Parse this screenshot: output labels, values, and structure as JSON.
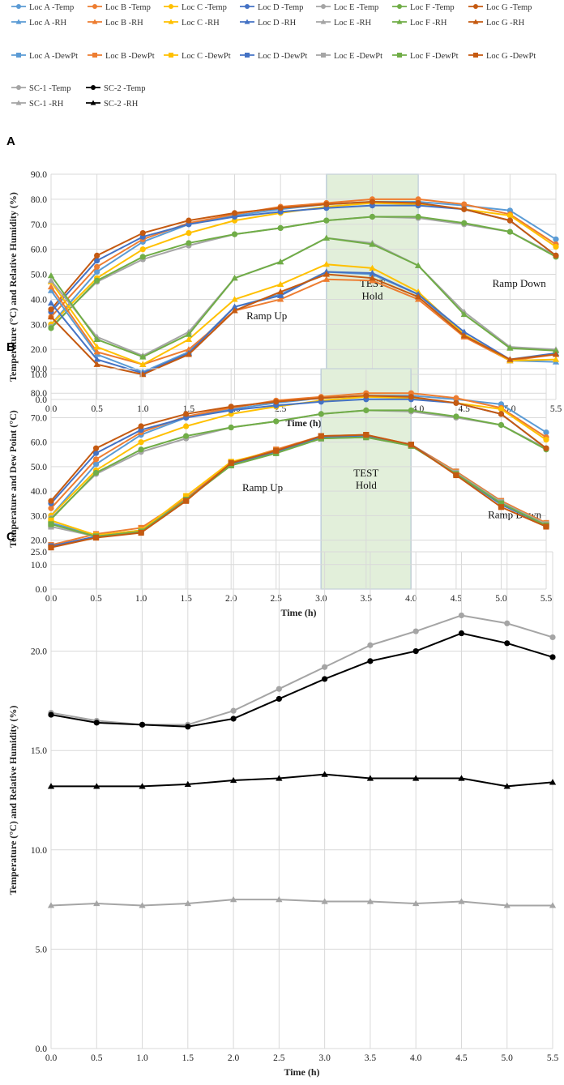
{
  "colors": {
    "locA": "#5B9BD5",
    "locB": "#ED7D31",
    "locC": "#FFC000",
    "locD": "#4472C4",
    "locE": "#A5A5A5",
    "locF": "#70AD47",
    "locG": "#C55A11",
    "sc1": "#A5A5A5",
    "sc2": "#000000",
    "grid": "#D9D9D9",
    "testFill": "#E2EFDA",
    "testStroke": "#5B9BD5"
  },
  "legend": {
    "rows": [
      [
        {
          "label": "Loc A -Temp",
          "color": "#5B9BD5",
          "marker": "circle"
        },
        {
          "label": "Loc B -Temp",
          "color": "#ED7D31",
          "marker": "circle"
        },
        {
          "label": "Loc C -Temp",
          "color": "#FFC000",
          "marker": "circle"
        },
        {
          "label": "Loc D -Temp",
          "color": "#4472C4",
          "marker": "circle"
        },
        {
          "label": "Loc E -Temp",
          "color": "#A5A5A5",
          "marker": "circle"
        },
        {
          "label": "Loc F -Temp",
          "color": "#70AD47",
          "marker": "circle"
        },
        {
          "label": "Loc G -Temp",
          "color": "#C55A11",
          "marker": "circle"
        }
      ],
      [
        {
          "label": "Loc A -RH",
          "color": "#5B9BD5",
          "marker": "triangle"
        },
        {
          "label": "Loc B -RH",
          "color": "#ED7D31",
          "marker": "triangle"
        },
        {
          "label": "Loc C -RH",
          "color": "#FFC000",
          "marker": "triangle"
        },
        {
          "label": "Loc D -RH",
          "color": "#4472C4",
          "marker": "triangle"
        },
        {
          "label": "Loc E -RH",
          "color": "#A5A5A5",
          "marker": "triangle"
        },
        {
          "label": "Loc F -RH",
          "color": "#70AD47",
          "marker": "triangle"
        },
        {
          "label": "Loc G -RH",
          "color": "#C55A11",
          "marker": "triangle"
        }
      ],
      [
        {
          "label": "Loc A -DewPt",
          "color": "#5B9BD5",
          "marker": "square"
        },
        {
          "label": "Loc B -DewPt",
          "color": "#ED7D31",
          "marker": "square"
        },
        {
          "label": "Loc C -DewPt",
          "color": "#FFC000",
          "marker": "square"
        },
        {
          "label": "Loc D -DewPt",
          "color": "#4472C4",
          "marker": "square"
        },
        {
          "label": "Loc E -DewPt",
          "color": "#A5A5A5",
          "marker": "square"
        },
        {
          "label": "Loc F -DewPt",
          "color": "#70AD47",
          "marker": "square"
        },
        {
          "label": "Loc G -DewPt",
          "color": "#C55A11",
          "marker": "square"
        }
      ],
      [
        {
          "label": "SC-1 -Temp",
          "color": "#A5A5A5",
          "marker": "circle"
        },
        {
          "label": "SC-2 -Temp",
          "color": "#000000",
          "marker": "circle"
        }
      ],
      [
        {
          "label": "SC-1 -RH",
          "color": "#A5A5A5",
          "marker": "triangle"
        },
        {
          "label": "SC-2 -RH",
          "color": "#000000",
          "marker": "triangle"
        }
      ]
    ]
  },
  "chart_data": [
    {
      "panel": "A",
      "type": "line",
      "title": "",
      "xlabel": "Time (h)",
      "ylabel": "Temperature (°C) and Relative Humidity (%)",
      "x": [
        0.0,
        0.5,
        1.0,
        1.5,
        2.0,
        2.5,
        3.0,
        3.5,
        4.0,
        4.5,
        5.0,
        5.5
      ],
      "xticks": [
        "0.0",
        "0.5",
        "1.0",
        "1.5",
        "2.0",
        "2.5",
        "3.0",
        "3.5",
        "4.0",
        "4.5",
        "5.0",
        "5.5"
      ],
      "xlim": [
        0,
        5.5
      ],
      "ylim": [
        0,
        90
      ],
      "yticks": [
        "0.0",
        "10.0",
        "20.0",
        "30.0",
        "40.0",
        "50.0",
        "60.0",
        "70.0",
        "80.0",
        "90.0"
      ],
      "grid": true,
      "shade": {
        "x0": 3.0,
        "x1": 4.0,
        "label1": "TEST",
        "label2": "Hold"
      },
      "annotations": [
        {
          "text": "Ramp Up",
          "x": 2.35,
          "y": 32
        },
        {
          "text": "Ramp Down",
          "x": 5.1,
          "y": 45
        },
        {
          "text": "TEST",
          "x": 3.5,
          "y": 45
        },
        {
          "text": "Hold",
          "x": 3.5,
          "y": 40
        }
      ],
      "series": [
        {
          "name": "Loc A -Temp",
          "color": "#5B9BD5",
          "marker": "circle",
          "values": [
            30,
            51,
            63,
            70,
            73.5,
            76,
            78,
            79,
            79,
            77.5,
            75.5,
            64
          ]
        },
        {
          "name": "Loc B -Temp",
          "color": "#ED7D31",
          "marker": "circle",
          "values": [
            33,
            53,
            64,
            70.5,
            74,
            77,
            78.5,
            80,
            80,
            78,
            74,
            62
          ]
        },
        {
          "name": "Loc C -Temp",
          "color": "#FFC000",
          "marker": "circle",
          "values": [
            30,
            48.5,
            60,
            66.5,
            71.5,
            74.5,
            77,
            78.5,
            78,
            76,
            73.5,
            61
          ]
        },
        {
          "name": "Loc D -Temp",
          "color": "#4472C4",
          "marker": "circle",
          "values": [
            35,
            55.5,
            65,
            70,
            73,
            75,
            76.5,
            77.5,
            77.5,
            76,
            71.5,
            57.5
          ]
        },
        {
          "name": "Loc E -Temp",
          "color": "#A5A5A5",
          "marker": "circle",
          "values": [
            29,
            47,
            56,
            61.5,
            66,
            68.5,
            71.5,
            73,
            72.5,
            70,
            67,
            57.5
          ]
        },
        {
          "name": "Loc F -Temp",
          "color": "#70AD47",
          "marker": "circle",
          "values": [
            28.5,
            47.5,
            57,
            62.5,
            66,
            68.5,
            71.5,
            73,
            73,
            70.5,
            67,
            57
          ]
        },
        {
          "name": "Loc G -Temp",
          "color": "#C55A11",
          "marker": "circle",
          "values": [
            36,
            57.5,
            66.5,
            71.5,
            74.5,
            76.5,
            78,
            79,
            78.5,
            76,
            71.5,
            57.5
          ]
        },
        {
          "name": "Loc A -RH",
          "color": "#5B9BD5",
          "marker": "triangle",
          "values": [
            43.5,
            18,
            11,
            19,
            37,
            42,
            51,
            50,
            42,
            26,
            15.5,
            15
          ]
        },
        {
          "name": "Loc B -RH",
          "color": "#ED7D31",
          "marker": "triangle",
          "values": [
            45,
            19,
            14,
            20,
            35.5,
            40,
            48,
            47.5,
            40,
            25,
            15.5,
            18
          ]
        },
        {
          "name": "Loc C -RH",
          "color": "#FFC000",
          "marker": "triangle",
          "values": [
            47,
            21,
            14,
            24,
            40,
            46,
            54,
            52.5,
            43,
            26,
            15.5,
            16
          ]
        },
        {
          "name": "Loc D -RH",
          "color": "#4472C4",
          "marker": "triangle",
          "values": [
            38.5,
            16,
            10.5,
            18.5,
            37,
            41.5,
            51,
            50.5,
            42,
            27,
            16,
            18.5
          ]
        },
        {
          "name": "Loc E -RH",
          "color": "#A5A5A5",
          "marker": "triangle",
          "values": [
            47.5,
            25,
            17.5,
            27,
            48.5,
            55,
            64.5,
            62.5,
            53.5,
            35,
            21,
            20
          ]
        },
        {
          "name": "Loc F -RH",
          "color": "#70AD47",
          "marker": "triangle",
          "values": [
            49.5,
            24,
            17,
            26,
            48.5,
            55,
            64.5,
            62,
            53.5,
            34,
            20.5,
            19.5
          ]
        },
        {
          "name": "Loc G -RH",
          "color": "#C55A11",
          "marker": "triangle",
          "values": [
            33,
            14,
            10,
            18,
            35.5,
            43,
            50,
            48.5,
            41,
            25.5,
            16,
            18
          ]
        }
      ]
    },
    {
      "panel": "B",
      "type": "line",
      "title": "",
      "xlabel": "Time (h)",
      "ylabel": "Temperature and Dew Point (°C)",
      "x": [
        0.0,
        0.5,
        1.0,
        1.5,
        2.0,
        2.5,
        3.0,
        3.5,
        4.0,
        4.5,
        5.0,
        5.5
      ],
      "xticks": [
        "0.0",
        "0.5",
        "1.0",
        "1.5",
        "2.0",
        "2.5",
        "3.0",
        "3.5",
        "4.0",
        "4.5",
        "5.0",
        "5.5"
      ],
      "xlim": [
        0,
        5.5
      ],
      "ylim": [
        0,
        90
      ],
      "yticks": [
        "0.0",
        "10.0",
        "20.0",
        "30.0",
        "40.0",
        "50.0",
        "60.0",
        "70.0",
        "80.0",
        "90.0"
      ],
      "grid": true,
      "shade": {
        "x0": 3.0,
        "x1": 4.0,
        "label1": "TEST",
        "label2": "Hold"
      },
      "annotations": [
        {
          "text": "Ramp Up",
          "x": 2.35,
          "y": 40
        },
        {
          "text": "Ramp Down",
          "x": 5.15,
          "y": 29
        },
        {
          "text": "TEST",
          "x": 3.5,
          "y": 46
        },
        {
          "text": "Hold",
          "x": 3.5,
          "y": 41
        }
      ],
      "series": [
        {
          "name": "Loc A -Temp",
          "color": "#5B9BD5",
          "marker": "circle",
          "values": [
            30,
            51,
            63,
            70,
            73.5,
            76,
            78,
            79,
            79,
            77.5,
            75.5,
            64
          ]
        },
        {
          "name": "Loc B -Temp",
          "color": "#ED7D31",
          "marker": "circle",
          "values": [
            33,
            53,
            64,
            70.5,
            74,
            77,
            78.5,
            80,
            80,
            78,
            74,
            62
          ]
        },
        {
          "name": "Loc C -Temp",
          "color": "#FFC000",
          "marker": "circle",
          "values": [
            30,
            48.5,
            60,
            66.5,
            71.5,
            74.5,
            77,
            78.5,
            78,
            76,
            73.5,
            61
          ]
        },
        {
          "name": "Loc D -Temp",
          "color": "#4472C4",
          "marker": "circle",
          "values": [
            35,
            55.5,
            65,
            70,
            73,
            75,
            76.5,
            77.5,
            77.5,
            76,
            71.5,
            57.5
          ]
        },
        {
          "name": "Loc E -Temp",
          "color": "#A5A5A5",
          "marker": "circle",
          "values": [
            29,
            47,
            56,
            61.5,
            66,
            68.5,
            71.5,
            73,
            72.5,
            70,
            67,
            57.5
          ]
        },
        {
          "name": "Loc F -Temp",
          "color": "#70AD47",
          "marker": "circle",
          "values": [
            28.5,
            47.5,
            57,
            62.5,
            66,
            68.5,
            71.5,
            73,
            73,
            70.5,
            67,
            57
          ]
        },
        {
          "name": "Loc G -Temp",
          "color": "#C55A11",
          "marker": "circle",
          "values": [
            36,
            57.5,
            66.5,
            71.5,
            74.5,
            76.5,
            78,
            79,
            78.5,
            76,
            71.5,
            57.5
          ]
        },
        {
          "name": "Loc A -DewPt",
          "color": "#5B9BD5",
          "marker": "square",
          "values": [
            27,
            22,
            24,
            37,
            51,
            56,
            62,
            62.5,
            59,
            48,
            36,
            26.5
          ]
        },
        {
          "name": "Loc B -DewPt",
          "color": "#ED7D31",
          "marker": "square",
          "values": [
            18,
            22.5,
            25,
            37,
            51.5,
            57,
            62.5,
            63,
            59,
            48,
            36,
            27
          ]
        },
        {
          "name": "Loc C -DewPt",
          "color": "#FFC000",
          "marker": "square",
          "values": [
            28,
            22,
            24,
            38,
            52,
            56.5,
            62,
            62.5,
            58.5,
            47.5,
            35.5,
            26.5
          ]
        },
        {
          "name": "Loc D -DewPt",
          "color": "#4472C4",
          "marker": "square",
          "values": [
            17.5,
            21.5,
            23.5,
            36.5,
            51,
            56,
            62,
            62.5,
            59,
            47,
            34.5,
            26
          ]
        },
        {
          "name": "Loc E -DewPt",
          "color": "#A5A5A5",
          "marker": "square",
          "values": [
            25.5,
            21.5,
            23.5,
            36.5,
            50.5,
            55.5,
            61.5,
            62,
            58.5,
            47.5,
            35.5,
            26.5
          ]
        },
        {
          "name": "Loc F -DewPt",
          "color": "#70AD47",
          "marker": "square",
          "values": [
            26.5,
            21.5,
            23.5,
            36.5,
            50.5,
            55.5,
            61.5,
            62,
            58.5,
            47,
            35,
            26
          ]
        },
        {
          "name": "Loc G -DewPt",
          "color": "#C55A11",
          "marker": "square",
          "values": [
            17,
            21,
            23,
            36,
            51.5,
            56.5,
            62.5,
            63,
            59,
            46.5,
            33.5,
            25.5
          ]
        }
      ]
    },
    {
      "panel": "C",
      "type": "line",
      "title": "",
      "xlabel": "Time (h)",
      "ylabel": "Temperature (°C) and Relative Humidity (%)",
      "x": [
        0.0,
        0.5,
        1.0,
        1.5,
        2.0,
        2.5,
        3.0,
        3.5,
        4.0,
        4.5,
        5.0,
        5.5
      ],
      "xticks": [
        "0.0",
        "0.5",
        "1.0",
        "1.5",
        "2.0",
        "2.5",
        "3.0",
        "3.5",
        "4.0",
        "4.5",
        "5.0",
        "5.5"
      ],
      "xlim": [
        0,
        5.5
      ],
      "ylim": [
        0,
        25
      ],
      "yticks": [
        "0.0",
        "5.0",
        "10.0",
        "15.0",
        "20.0",
        "25.0"
      ],
      "grid": true,
      "annotations": [],
      "series": [
        {
          "name": "SC-1 -Temp",
          "color": "#A5A5A5",
          "marker": "circle",
          "values": [
            16.9,
            16.5,
            16.3,
            16.3,
            17.0,
            18.1,
            19.2,
            20.3,
            21.0,
            21.8,
            21.4,
            20.7
          ]
        },
        {
          "name": "SC-2 -Temp",
          "color": "#000000",
          "marker": "circle",
          "values": [
            16.8,
            16.4,
            16.3,
            16.2,
            16.6,
            17.6,
            18.6,
            19.5,
            20.0,
            20.9,
            20.4,
            19.7
          ]
        },
        {
          "name": "SC-1 -RH",
          "color": "#A5A5A5",
          "marker": "triangle",
          "values": [
            7.2,
            7.3,
            7.2,
            7.3,
            7.5,
            7.5,
            7.4,
            7.4,
            7.3,
            7.4,
            7.2,
            7.2
          ]
        },
        {
          "name": "SC-2 -RH",
          "color": "#000000",
          "marker": "triangle",
          "values": [
            13.2,
            13.2,
            13.2,
            13.3,
            13.5,
            13.6,
            13.8,
            13.6,
            13.6,
            13.6,
            13.2,
            13.4
          ]
        }
      ]
    }
  ]
}
